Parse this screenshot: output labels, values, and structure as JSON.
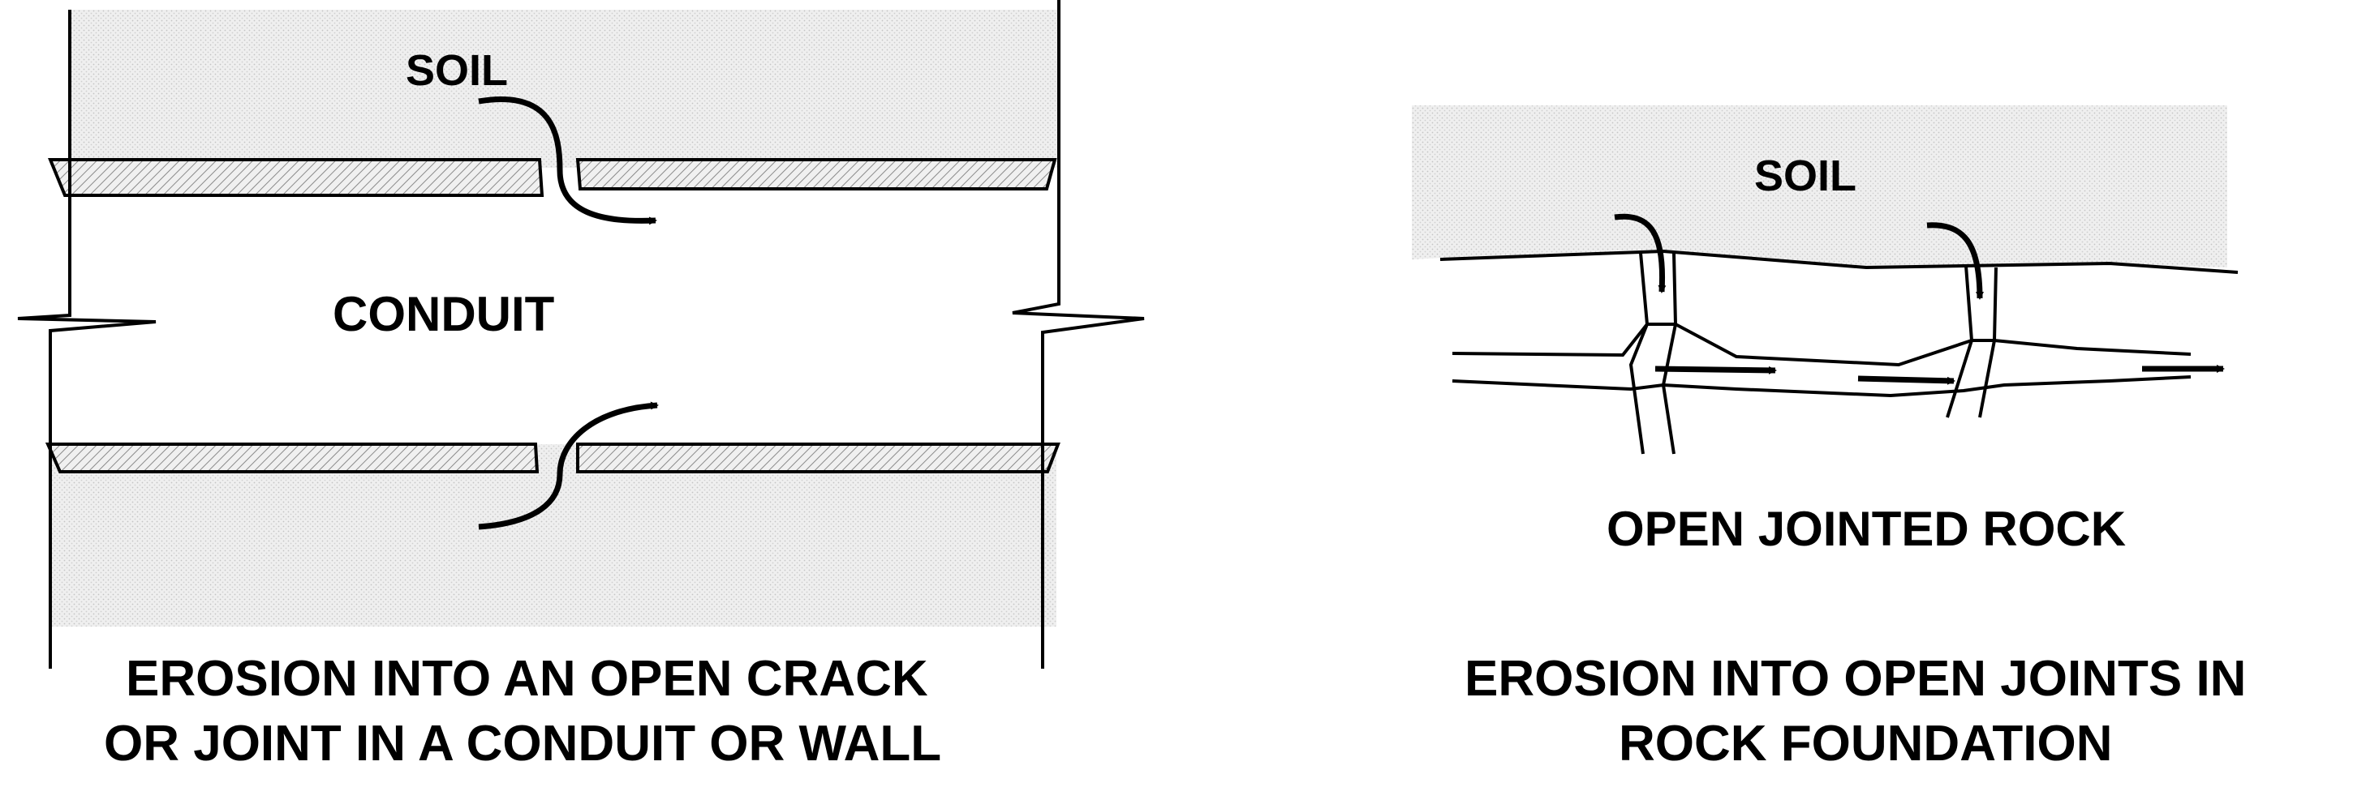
{
  "left_panel": {
    "soil_label": "SOIL",
    "conduit_label": "CONDUIT",
    "caption_line1": "EROSION INTO AN OPEN CRACK",
    "caption_line2": "OR JOINT IN A CONDUIT OR WALL"
  },
  "right_panel": {
    "soil_label": "SOIL",
    "rock_label": "OPEN JOINTED ROCK",
    "caption_line1": "EROSION INTO OPEN JOINTS IN",
    "caption_line2": "ROCK FOUNDATION"
  },
  "colors": {
    "soil_fill": "#ececec",
    "wall_fill": "#dcdcdc",
    "line": "#000000"
  }
}
